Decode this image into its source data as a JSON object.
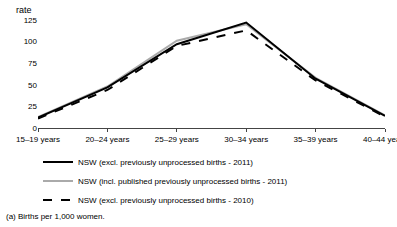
{
  "chart_data": {
    "type": "line",
    "categories": [
      "15–19 years",
      "20–24 years",
      "25–29 years",
      "30–34 years",
      "35–39 years",
      "40–44 years"
    ],
    "series": [
      {
        "name": "NSW (excl. previously unprocessed births - 2011)",
        "color": "#000000",
        "line_style": "solid",
        "values": [
          12,
          47,
          97,
          122,
          57,
          14
        ]
      },
      {
        "name": "NSW (incl. published previously unprocessed births - 2011)",
        "color": "#aaaaaa",
        "line_style": "solid",
        "values": [
          12.5,
          48,
          101,
          120,
          58,
          14.5
        ]
      },
      {
        "name": "NSW (excl. previously unprocessed births - 2010)",
        "color": "#000000",
        "line_style": "dashed",
        "values": [
          11,
          44,
          95,
          113,
          55,
          13
        ]
      }
    ],
    "ylabel": "rate",
    "annotations": [
      "(a) Births per 1,000 women."
    ],
    "ylim": [
      0,
      125
    ],
    "yticks": [
      0,
      25,
      50,
      75,
      100,
      125
    ],
    "grid": false,
    "legend": "bottom"
  }
}
